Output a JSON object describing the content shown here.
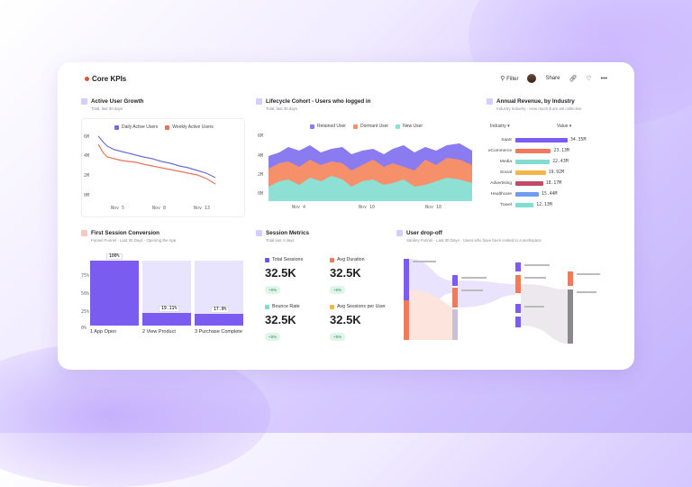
{
  "header": {
    "title": "Core KPIs",
    "filter_label": "Filter",
    "share_label": "Share"
  },
  "active_users": {
    "title": "Active User Growth",
    "subtitle": "Total, last 30 days",
    "legend": [
      "Daily Active Users",
      "Weekly Active Users"
    ],
    "y_ticks": [
      "6M",
      "4M",
      "2M",
      "0M"
    ],
    "x_ticks": [
      "Nov 5",
      "Nov 8",
      "Nov 13"
    ],
    "colors": {
      "daily": "#6f6fd8",
      "weekly": "#e8745a"
    }
  },
  "lifecycle": {
    "title": "Lifecycle Cohort - Users who logged in",
    "subtitle": "Total, last 30 days",
    "legend": [
      "Retained User",
      "Dormant User",
      "New User"
    ],
    "y_ticks": [
      "6M",
      "4M",
      "2M",
      "0M"
    ],
    "x_ticks": [
      "Nov 4",
      "Nov 10",
      "Nov 18"
    ],
    "colors": {
      "retained": "#8a7cf0",
      "dormant": "#f5906b",
      "new": "#8fe0d4"
    }
  },
  "revenue": {
    "title": "Annual Revenue, by Industry",
    "subtitle": "Industry Industry - How much $ are we collective",
    "col_industry": "Industry",
    "col_value": "Value",
    "rows": [
      {
        "label": "SaaS",
        "value": "34.35M",
        "color": "#7c5cf0",
        "frac": 1.0
      },
      {
        "label": "eCommerce",
        "value": "23.13M",
        "color": "#f07a5a",
        "frac": 0.68
      },
      {
        "label": "Media",
        "value": "22.43M",
        "color": "#7fded1",
        "frac": 0.66
      },
      {
        "label": "Social",
        "value": "19.92M",
        "color": "#f4b64a",
        "frac": 0.58
      },
      {
        "label": "Advertising",
        "value": "18.17M",
        "color": "#c24a66",
        "frac": 0.53
      },
      {
        "label": "Healthcare",
        "value": "15.44M",
        "color": "#6f9cf0",
        "frac": 0.45
      },
      {
        "label": "Travel",
        "value": "12.13M",
        "color": "#7fded1",
        "frac": 0.35
      }
    ]
  },
  "first_session": {
    "title": "First Session Conversion",
    "subtitle": "Funnel Funnel - Last 30 Days - Opening the App",
    "y_ticks": [
      "75%",
      "50%",
      "25%",
      "0%"
    ],
    "steps": [
      {
        "label": "1 App Open",
        "pct": "100%",
        "frac": 1.0
      },
      {
        "label": "2 View Product",
        "pct": "19.11%",
        "frac": 0.19
      },
      {
        "label": "3 Purchase Complete",
        "pct": "17.9%",
        "frac": 0.18
      }
    ]
  },
  "session_metrics": {
    "title": "Session Metrics",
    "subtitle": "Total last 4 days",
    "metrics": [
      {
        "label": "Total Sessions",
        "value": "32.5K",
        "delta": "+5%",
        "color": "#6b54e8"
      },
      {
        "label": "Avg Duration",
        "value": "32.5K",
        "delta": "+6%",
        "color": "#f07a5a"
      },
      {
        "label": "Bounce Rate",
        "value": "32.5K",
        "delta": "+5%",
        "color": "#7fded1"
      },
      {
        "label": "Avg Sessions per User",
        "value": "32.5K",
        "delta": "+5%",
        "color": "#f4b64a"
      }
    ]
  },
  "dropoff": {
    "title": "User drop-off",
    "subtitle": "Sankey Funnel - Last 30 Days - Users who have been invited to a workspace"
  }
}
